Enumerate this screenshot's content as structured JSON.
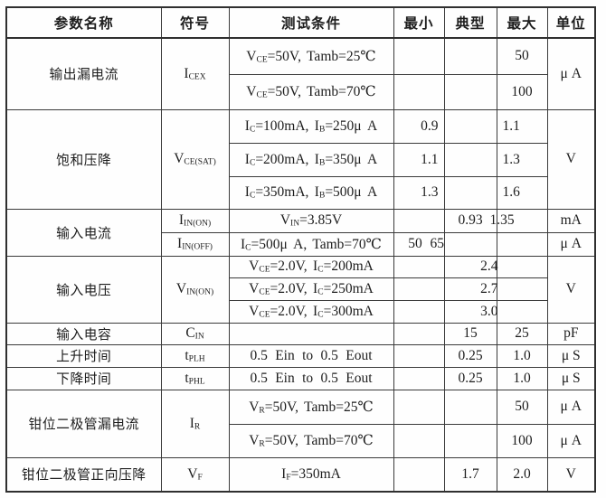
{
  "colors": {
    "border": "#3a3a3a",
    "text": "#1d1d1d",
    "background": "#ffffff"
  },
  "columns": [
    "参数名称",
    "符号",
    "测试条件",
    "最小",
    "典型",
    "最大",
    "单位"
  ],
  "groups": [
    {
      "param": "输出漏电流",
      "symbol": "I_{CEX}",
      "unit": "μ A",
      "rows": [
        {
          "cond": "V_{CE}=50V, Tamb=25℃",
          "max": "50"
        },
        {
          "cond": "V_{CE}=50V, Tamb=70℃",
          "max": "100"
        }
      ]
    },
    {
      "param": "饱和压降",
      "symbol": "V_{CE(SAT)}",
      "unit": "V",
      "rows": [
        {
          "cond": "I_{C}=100mA, I_{B}=250μ A",
          "min": "0.9",
          "max": "1.1"
        },
        {
          "cond": "I_{C}=200mA, I_{B}=350μ A",
          "min": "1.1",
          "max": "1.3"
        },
        {
          "cond": "I_{C}=350mA, I_{B}=500μ A",
          "min": "1.3",
          "max": "1.6"
        }
      ]
    },
    {
      "param": "输入电流",
      "rows": [
        {
          "symbol": "I_{IN(ON)}",
          "cond": "V_{IN}=3.85V",
          "typ": "0.93",
          "max": "1.35",
          "unit": "mA"
        },
        {
          "symbol": "I_{IN(OFF)}",
          "cond": "I_{C}=500μ A, Tamb=70℃",
          "min": "50",
          "typ": "65",
          "unit": "μ A"
        }
      ]
    },
    {
      "param": "输入电压",
      "symbol": "V_{IN(ON)}",
      "unit": "V",
      "rows": [
        {
          "cond": "V_{CE}=2.0V, I_{C}=200mA",
          "typ": "2.4"
        },
        {
          "cond": "V_{CE}=2.0V, I_{C}=250mA",
          "typ": "2.7"
        },
        {
          "cond": "V_{CE}=2.0V, I_{C}=300mA",
          "typ": "3.0"
        }
      ]
    },
    {
      "param": "输入电容",
      "symbol": "C_{IN}",
      "rows": [
        {
          "cond": "",
          "typ": "15",
          "max": "25",
          "unit": "pF"
        }
      ]
    },
    {
      "param": "上升时间",
      "symbol": "t_{PLH}",
      "rows": [
        {
          "cond": "0.5 Ein to 0.5 Eout",
          "typ": "0.25",
          "max": "1.0",
          "unit": "μ S"
        }
      ]
    },
    {
      "param": "下降时间",
      "symbol": "t_{PHL}",
      "rows": [
        {
          "cond": "0.5 Ein to 0.5 Eout",
          "typ": "0.25",
          "max": "1.0",
          "unit": "μ S"
        }
      ]
    },
    {
      "param": "钳位二极管漏电流",
      "symbol": "I_{R}",
      "rows": [
        {
          "cond": "V_{R}=50V, Tamb=25℃",
          "max": "50",
          "unit": "μ A"
        },
        {
          "cond": "V_{R}=50V, Tamb=70℃",
          "max": "100",
          "unit": "μ A"
        }
      ]
    },
    {
      "param": "钳位二极管正向压降",
      "symbol": "V_{F}",
      "rows": [
        {
          "cond": "I_{F}=350mA",
          "typ": "1.7",
          "max": "2.0",
          "unit": "V"
        }
      ]
    }
  ]
}
